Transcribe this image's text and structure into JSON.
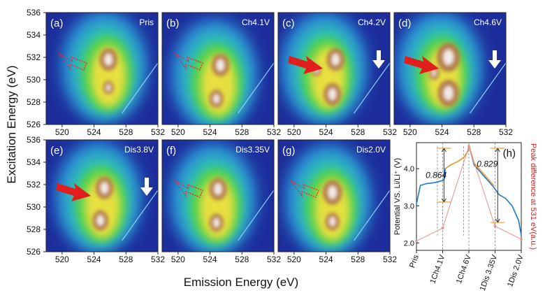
{
  "figure": {
    "xlabel": "Emission Energy (eV)",
    "ylabel": "Excitation Energy (eV)"
  },
  "chart_data": [
    {
      "type": "heatmap",
      "panels": [
        {
          "label": "(a)",
          "condition": "Pris",
          "feature_arrow": "outline",
          "edge_arrow": false,
          "peaks": [
            {
              "x": 525.8,
              "y": 531.8,
              "r": 1.0
            },
            {
              "x": 525.8,
              "y": 529.3,
              "r": 0.6
            }
          ]
        },
        {
          "label": "(b)",
          "condition": "Ch4.1V",
          "feature_arrow": "outline",
          "edge_arrow": false,
          "peaks": [
            {
              "x": 525.3,
              "y": 531.3,
              "r": 1.0
            },
            {
              "x": 524.8,
              "y": 528.3,
              "r": 0.8
            }
          ]
        },
        {
          "label": "(c)",
          "condition": "Ch4.2V",
          "feature_arrow": "solid",
          "edge_arrow": true,
          "peaks": [
            {
              "x": 525.2,
              "y": 531.8,
              "r": 1.0
            },
            {
              "x": 524.8,
              "y": 528.7,
              "r": 1.0
            },
            {
              "x": 522.8,
              "y": 530.8,
              "r": 0.5
            }
          ]
        },
        {
          "label": "(d)",
          "condition": "Ch4.6V",
          "feature_arrow": "solid",
          "edge_arrow": true,
          "peaks": [
            {
              "x": 524.8,
              "y": 532.0,
              "r": 1.3
            },
            {
              "x": 524.8,
              "y": 528.8,
              "r": 1.2
            },
            {
              "x": 523.0,
              "y": 530.6,
              "r": 0.6
            }
          ]
        },
        {
          "label": "(e)",
          "condition": "Dis3.8V",
          "feature_arrow": "solid",
          "edge_arrow": true,
          "peaks": [
            {
              "x": 525.3,
              "y": 531.7,
              "r": 1.0
            },
            {
              "x": 524.8,
              "y": 528.8,
              "r": 0.9
            }
          ]
        },
        {
          "label": "(f)",
          "condition": "Dis3.35V",
          "feature_arrow": "outline",
          "edge_arrow": false,
          "peaks": [
            {
              "x": 525.0,
              "y": 531.6,
              "r": 1.0
            },
            {
              "x": 524.8,
              "y": 528.6,
              "r": 0.8
            }
          ]
        },
        {
          "label": "(g)",
          "condition": "Dis2.0V",
          "feature_arrow": "outline",
          "edge_arrow": false,
          "peaks": [
            {
              "x": 524.8,
              "y": 531.3,
              "r": 1.1
            },
            {
              "x": 524.8,
              "y": 528.7,
              "r": 0.8
            }
          ]
        }
      ],
      "xlim": [
        518,
        532
      ],
      "ylim": [
        526,
        536
      ],
      "x_ticks": [
        "520",
        "524",
        "528",
        "532"
      ],
      "y_ticks": [
        "526",
        "528",
        "530",
        "532",
        "534",
        "536"
      ],
      "elastic_line": [
        {
          "x": 527.5,
          "y": 527.0
        },
        {
          "x": 532.0,
          "y": 531.5
        }
      ]
    },
    {
      "type": "line",
      "label": "(h)",
      "ylabel_left": "Potential VS. Li/Li⁺ (V)",
      "ylabel_right": "Peak difference at 531 eV(a.u.)",
      "y_ticks_left": [
        "2.0",
        "3.0",
        "4.0"
      ],
      "ylim_left": [
        1.8,
        4.7
      ],
      "x_tick_labels": [
        "Pris",
        "1Ch4.1V",
        "1Ch4.6V",
        "1Dis 3.35V",
        "1Dis 2.0V"
      ],
      "x_tick_positions": [
        0,
        2,
        4,
        6,
        8
      ],
      "xlim": [
        0,
        8
      ],
      "annotations": [
        "0.864",
        "0.829"
      ],
      "series": [
        {
          "name": "",
          "color": "#1f77c8",
          "x": [
            0,
            0.3,
            0.8,
            1.3,
            1.8,
            2.1,
            2.2,
            2.6,
            3.2,
            3.6,
            3.9,
            4.0,
            4.1,
            4.4,
            4.9,
            5.4,
            5.9,
            6.2,
            6.3,
            6.8,
            7.3,
            7.8,
            8.0
          ],
          "y": [
            3.05,
            3.55,
            3.6,
            3.62,
            3.66,
            3.7,
            4.0,
            4.1,
            4.2,
            4.3,
            4.45,
            4.6,
            4.5,
            4.1,
            3.9,
            3.7,
            3.5,
            3.35,
            3.3,
            3.2,
            3.0,
            2.6,
            2.2
          ]
        },
        {
          "name": "",
          "color": "#f0a030",
          "x": [
            2.2,
            2.6,
            3.2,
            3.6,
            3.9,
            4.0,
            4.1,
            4.4,
            4.9,
            5.4,
            5.9
          ],
          "y": [
            4.0,
            4.1,
            4.2,
            4.3,
            4.45,
            4.65,
            4.52,
            4.15,
            3.95,
            3.75,
            3.55
          ]
        },
        {
          "name": "",
          "color": "#e89090",
          "x": [
            0,
            2,
            4,
            6,
            8
          ],
          "y": [
            2.05,
            2.4,
            4.6,
            2.45,
            2.1
          ]
        }
      ]
    }
  ]
}
